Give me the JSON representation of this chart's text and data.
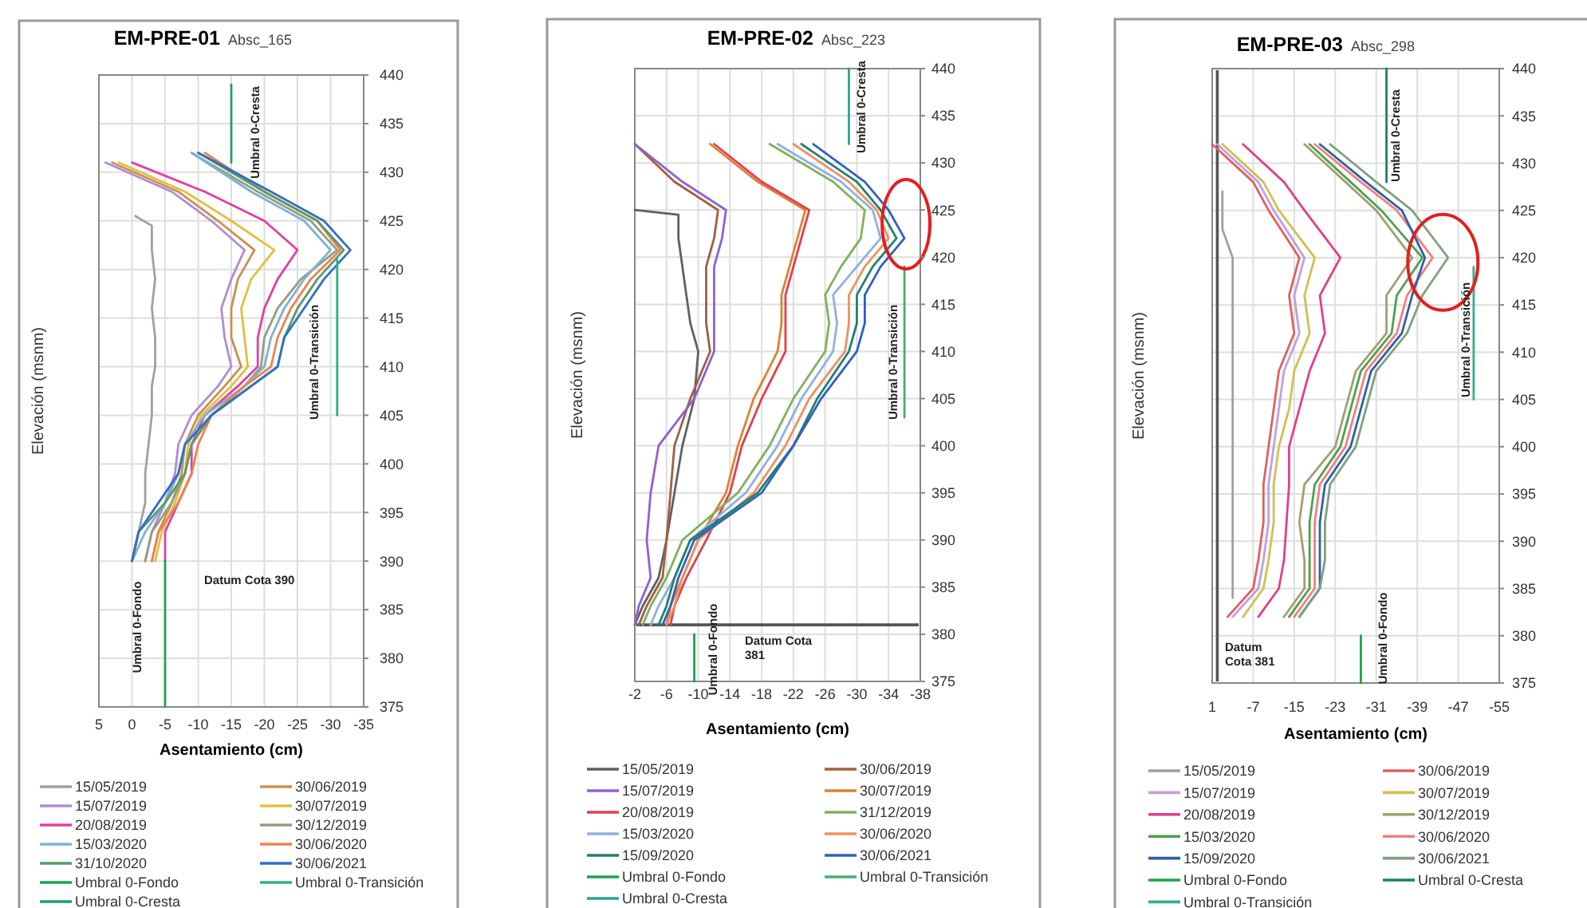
{
  "chart_data": [
    {
      "type": "line",
      "title": "EM-PRE-01",
      "subtitle": "Absc_165",
      "xlabel": "Asentamiento (cm)",
      "ylabel": "Elevación (msnm)",
      "xlim": [
        5,
        -35
      ],
      "xticks": [
        5,
        0,
        -5,
        -10,
        -15,
        -20,
        -25,
        -30,
        -35
      ],
      "ylim": [
        375,
        440
      ],
      "yticks": [
        375,
        380,
        385,
        390,
        395,
        400,
        405,
        410,
        415,
        420,
        425,
        430,
        435,
        440
      ],
      "grid": true,
      "legend": "bottom",
      "annotations": [
        "Umbral 0-Cresta",
        "Umbral 0-Transición",
        "Umbral 0-Fondo",
        "Datum Cota 390"
      ],
      "series": [
        {
          "name": "15/05/2019",
          "color": "#a0a0a0",
          "x": [
            -0.5,
            -3,
            -3,
            -3.5,
            -3,
            -3.5,
            -3.5,
            -3,
            -3,
            -2.5,
            -2,
            -2,
            -1,
            0
          ],
          "values": [
            425.5,
            424.5,
            422,
            419,
            416,
            413,
            410,
            408,
            405,
            402,
            399,
            396,
            393,
            390
          ]
        },
        {
          "name": "30/06/2019",
          "color": "#c89050",
          "x": [
            3,
            -7,
            -13,
            -18.5,
            -16,
            -15,
            -15,
            -16.5,
            -14,
            -10,
            -8,
            -7.5,
            -6,
            -4,
            -3
          ],
          "values": [
            431,
            428,
            425,
            422,
            419,
            416,
            413,
            410,
            408,
            405,
            402,
            399,
            396,
            393,
            390
          ]
        },
        {
          "name": "15/07/2019",
          "color": "#b08cd0",
          "x": [
            4,
            -6,
            -12,
            -17,
            -15,
            -13.5,
            -14,
            -15,
            -13,
            -9,
            -7,
            -6.5,
            -5,
            -3,
            -2
          ],
          "values": [
            431,
            428,
            425,
            422,
            419,
            416,
            413,
            410,
            408,
            405,
            402,
            399,
            396,
            393,
            390
          ]
        },
        {
          "name": "30/07/2019",
          "color": "#e0c040",
          "x": [
            2,
            -8,
            -15,
            -21.5,
            -18,
            -16.5,
            -17,
            -17.5,
            -15,
            -10.5,
            -8.5,
            -8,
            -6.5,
            -4.5,
            -3.5
          ],
          "values": [
            431,
            428,
            425,
            422,
            419,
            416,
            413,
            410,
            408,
            405,
            402,
            399,
            396,
            393,
            390
          ]
        },
        {
          "name": "20/08/2019",
          "color": "#e040a0",
          "x": [
            0,
            -11,
            -20,
            -25,
            -22,
            -20,
            -19,
            -19,
            -16,
            -11,
            -9,
            -9,
            -7,
            -5,
            -5
          ],
          "values": [
            431,
            428,
            425,
            422,
            419,
            416,
            413,
            410,
            408,
            405,
            402,
            399,
            396,
            393,
            390
          ]
        },
        {
          "name": "30/12/2019",
          "color": "#90a080",
          "x": [
            -9,
            -19,
            -27,
            -31,
            -25.5,
            -22,
            -20,
            -19.5,
            -17,
            -12,
            -9,
            -8,
            -6,
            -3,
            -2
          ],
          "values": [
            432,
            428,
            425,
            422,
            419,
            416,
            413,
            410,
            408,
            405,
            402,
            399,
            396,
            393,
            390
          ]
        },
        {
          "name": "15/03/2020",
          "color": "#7fb0d0",
          "x": [
            -9,
            -18,
            -26,
            -30,
            -26,
            -23,
            -21,
            -20,
            -17,
            -11,
            -8,
            -7,
            -5,
            -2,
            0
          ],
          "values": [
            432,
            428,
            425,
            422,
            419,
            416,
            413,
            410,
            408,
            405,
            402,
            399,
            396,
            393,
            390
          ]
        },
        {
          "name": "30/06/2020",
          "color": "#f08050",
          "x": [
            -11,
            -20,
            -28,
            -31.5,
            -27,
            -24,
            -22,
            -21,
            -17,
            -12,
            -10,
            -9,
            -7,
            -4,
            -3
          ],
          "values": [
            432,
            428,
            425,
            422,
            419,
            416,
            413,
            410,
            408,
            405,
            402,
            399,
            396,
            393,
            390
          ]
        },
        {
          "name": "31/10/2020",
          "color": "#5a9a6a",
          "x": [
            -10,
            -20,
            -28,
            -32,
            -28,
            -25,
            -23,
            -22,
            -18,
            -12,
            -9,
            -8,
            -5,
            -1,
            0
          ],
          "values": [
            432,
            428,
            425,
            422,
            419,
            416,
            413,
            410,
            408,
            405,
            402,
            399,
            396,
            393,
            390
          ]
        },
        {
          "name": "30/06/2021",
          "color": "#3070c0",
          "x": [
            -10,
            -21,
            -29,
            -33,
            -29,
            -26,
            -23,
            -22,
            -18,
            -12,
            -8,
            -7,
            -4,
            -1,
            0
          ],
          "values": [
            432,
            428,
            425,
            422,
            419,
            416,
            413,
            410,
            408,
            405,
            402,
            399,
            396,
            393,
            390
          ]
        },
        {
          "name": "Umbral 0-Fondo",
          "color": "#20a050",
          "x": [
            -5,
            -5
          ],
          "values": [
            390,
            375
          ]
        },
        {
          "name": "Umbral 0-Transición",
          "color": "#30b080",
          "x": [
            -31,
            -31
          ],
          "values": [
            421,
            405
          ]
        },
        {
          "name": "Umbral 0-Cresta",
          "color": "#20a060",
          "x": [
            -15,
            -15
          ],
          "values": [
            439,
            431
          ]
        }
      ]
    },
    {
      "type": "line",
      "title": "EM-PRE-02",
      "subtitle": "Absc_223",
      "xlabel": "Asentamiento (cm)",
      "ylabel": "Elevación (msnm)",
      "xlim": [
        -2,
        -38
      ],
      "xticks": [
        -2,
        -6,
        -10,
        -14,
        -18,
        -22,
        -26,
        -30,
        -34,
        -38
      ],
      "ylim": [
        375,
        440
      ],
      "yticks": [
        375,
        380,
        385,
        390,
        395,
        400,
        405,
        410,
        415,
        420,
        425,
        430,
        435,
        440
      ],
      "grid": true,
      "legend": "bottom",
      "ref_lines": [
        {
          "axis": "y",
          "value": 381,
          "color": "#555555"
        }
      ],
      "annotations": [
        "Umbral 0-Cresta",
        "Umbral 0-Transición",
        "Umbral 0-Fondo",
        "Datum Cota\n381"
      ],
      "series": [
        {
          "name": "15/05/2019",
          "color": "#606060",
          "x": [
            -2,
            -7.5,
            -7.5,
            -8,
            -8.5,
            -9,
            -10,
            -9.5,
            -8,
            -7,
            -6,
            -5,
            -3,
            -2
          ],
          "values": [
            425,
            424.5,
            422,
            419,
            416,
            413,
            410,
            405,
            400,
            395,
            390,
            386,
            383,
            381
          ]
        },
        {
          "name": "30/06/2019",
          "color": "#a06040",
          "x": [
            -2,
            -7,
            -12.5,
            -12,
            -11,
            -11,
            -11,
            -11.5,
            -9,
            -7,
            -6.5,
            -6,
            -5.5,
            -3.5,
            -2.5
          ],
          "values": [
            432,
            428,
            425,
            422,
            419,
            416,
            413,
            410,
            405,
            400,
            395,
            390,
            386,
            383,
            381
          ]
        },
        {
          "name": "15/07/2019",
          "color": "#9060d0",
          "x": [
            -2,
            -8,
            -13.5,
            -13,
            -12,
            -12,
            -12,
            -12,
            -9.5,
            -5,
            -4,
            -3.5,
            -4,
            -2.5,
            -2
          ],
          "values": [
            432,
            428,
            425,
            422,
            419,
            416,
            413,
            410,
            405,
            400,
            395,
            390,
            386,
            383,
            381
          ]
        },
        {
          "name": "30/07/2019",
          "color": "#e08030",
          "x": [
            -11.5,
            -17.5,
            -23.5,
            -22.5,
            -21.5,
            -20.5,
            -20.5,
            -20,
            -17,
            -15,
            -13.5,
            -10,
            -8,
            -6.5,
            -6
          ],
          "values": [
            432,
            428,
            425,
            422,
            419,
            416,
            413,
            410,
            405,
            400,
            395,
            390,
            386,
            383,
            381
          ]
        },
        {
          "name": "20/08/2019",
          "color": "#e04050",
          "x": [
            -12,
            -18,
            -24,
            -23,
            -22,
            -21,
            -21,
            -21,
            -18,
            -15.5,
            -14,
            -11,
            -8.5,
            -7,
            -6.5
          ],
          "values": [
            432,
            428,
            425,
            422,
            419,
            416,
            413,
            410,
            405,
            400,
            395,
            390,
            386,
            383,
            381
          ]
        },
        {
          "name": "31/12/2019",
          "color": "#80b060",
          "x": [
            -19,
            -27,
            -31,
            -30.5,
            -28,
            -26,
            -26.5,
            -26,
            -22,
            -19,
            -15,
            -8,
            -6,
            -4,
            -3
          ],
          "values": [
            432,
            428,
            425,
            422,
            419,
            416,
            413,
            410,
            405,
            400,
            395,
            390,
            386,
            383,
            381
          ]
        },
        {
          "name": "15/03/2020",
          "color": "#90b0e0",
          "x": [
            -20,
            -28,
            -32,
            -33,
            -30,
            -27,
            -27.5,
            -27,
            -23,
            -20,
            -16,
            -9,
            -7,
            -5,
            -4
          ],
          "values": [
            432,
            428,
            425,
            422,
            419,
            416,
            413,
            410,
            405,
            400,
            395,
            390,
            386,
            383,
            381
          ]
        },
        {
          "name": "30/06/2020",
          "color": "#f09060",
          "x": [
            -22,
            -29,
            -32.5,
            -34,
            -31,
            -29,
            -29,
            -28.5,
            -24,
            -21,
            -17,
            -10,
            -8,
            -7,
            -6
          ],
          "values": [
            432,
            428,
            425,
            422,
            419,
            416,
            413,
            410,
            405,
            400,
            395,
            390,
            386,
            383,
            381
          ]
        },
        {
          "name": "15/09/2020",
          "color": "#208070",
          "x": [
            -23,
            -30,
            -33,
            -35,
            -32,
            -30,
            -30,
            -29,
            -25,
            -22,
            -17.5,
            -9,
            -7,
            -6,
            -5
          ],
          "values": [
            432,
            428,
            425,
            422,
            419,
            416,
            413,
            410,
            405,
            400,
            395,
            390,
            386,
            383,
            381
          ]
        },
        {
          "name": "30/06/2021",
          "color": "#3060c0",
          "x": [
            -24.5,
            -31,
            -34,
            -36,
            -33,
            -31,
            -31,
            -30,
            -25.5,
            -22,
            -18,
            -9.5,
            -7.5,
            -6.5,
            -5.5
          ],
          "values": [
            432,
            428,
            425,
            422,
            419,
            416,
            413,
            410,
            405,
            400,
            395,
            390,
            386,
            383,
            381
          ]
        },
        {
          "name": "Umbral 0-Fondo",
          "color": "#20a050",
          "x": [
            -9.5,
            -9.5
          ],
          "values": [
            380,
            375
          ]
        },
        {
          "name": "Umbral 0-Transición",
          "color": "#40b070",
          "x": [
            -36,
            -36
          ],
          "values": [
            419,
            403
          ]
        },
        {
          "name": "Umbral 0-Cresta",
          "color": "#30a090",
          "x": [
            -29,
            -29
          ],
          "values": [
            440,
            432
          ]
        }
      ]
    },
    {
      "type": "line",
      "title": "EM-PRE-03",
      "subtitle": "Absc_298",
      "xlabel": "Asentamiento (cm)",
      "ylabel": "Elevación (msnm)",
      "xlim": [
        1,
        -55
      ],
      "xticks": [
        1,
        -7,
        -15,
        -23,
        -31,
        -39,
        -47,
        -55
      ],
      "ylim": [
        375,
        440
      ],
      "yticks": [
        375,
        380,
        385,
        390,
        395,
        400,
        405,
        410,
        415,
        420,
        425,
        430,
        435,
        440
      ],
      "grid": true,
      "legend": "bottom",
      "ref_lines": [
        {
          "axis": "x",
          "value": 0,
          "color": "#555555"
        }
      ],
      "annotations": [
        "Umbral 0-Cresta",
        "Umbral 0-Transición",
        "Umbral 0-Fondo",
        "Datum\nCota 381"
      ],
      "series": [
        {
          "name": "15/05/2019",
          "color": "#a0a0a0",
          "x": [
            -1,
            -1,
            -3,
            -3,
            -3,
            -3,
            -3,
            -3,
            -3,
            -3,
            -3,
            -3
          ],
          "values": [
            427,
            423,
            420,
            416,
            412,
            408,
            404,
            400,
            396,
            392,
            388,
            384
          ]
        },
        {
          "name": "30/06/2019",
          "color": "#e06060",
          "x": [
            1,
            -7,
            -10,
            -16,
            -14,
            -15,
            -12,
            -11,
            -10,
            -9,
            -9,
            -8,
            -7,
            -2
          ],
          "values": [
            432,
            428,
            425,
            420,
            416,
            412,
            408,
            404,
            400,
            396,
            392,
            388,
            385,
            382
          ]
        },
        {
          "name": "15/07/2019",
          "color": "#c0a0e0",
          "x": [
            0,
            -8,
            -11,
            -17,
            -15,
            -16,
            -13,
            -12,
            -11,
            -10,
            -10,
            -9,
            -8,
            -3
          ],
          "values": [
            432,
            428,
            425,
            420,
            416,
            412,
            408,
            404,
            400,
            396,
            392,
            388,
            385,
            382
          ]
        },
        {
          "name": "30/07/2019",
          "color": "#d0c050",
          "x": [
            -1,
            -9,
            -12,
            -19,
            -17,
            -18,
            -15,
            -14,
            -12,
            -11,
            -11,
            -10,
            -9,
            -5
          ],
          "values": [
            432,
            428,
            425,
            420,
            416,
            412,
            408,
            404,
            400,
            396,
            392,
            388,
            385,
            382
          ]
        },
        {
          "name": "20/08/2019",
          "color": "#e0408a",
          "x": [
            -5,
            -13,
            -17,
            -24,
            -20,
            -21,
            -18,
            -16,
            -14,
            -14,
            -13.5,
            -13,
            -12,
            -8
          ],
          "values": [
            432,
            428,
            425,
            420,
            416,
            412,
            408,
            404,
            400,
            396,
            392,
            388,
            385,
            382
          ]
        },
        {
          "name": "30/12/2019",
          "color": "#a0a070",
          "x": [
            -17,
            -25,
            -31,
            -38,
            -33,
            -33,
            -27,
            -25,
            -23,
            -17,
            -16,
            -17,
            -17,
            -13
          ],
          "values": [
            432,
            428,
            425,
            420,
            416,
            412,
            408,
            404,
            400,
            396,
            392,
            388,
            385,
            382
          ]
        },
        {
          "name": "15/03/2020",
          "color": "#50a050",
          "x": [
            -18,
            -26,
            -32,
            -40,
            -35,
            -34,
            -28,
            -26,
            -24,
            -19,
            -18,
            -18,
            -18,
            -14
          ],
          "values": [
            432,
            428,
            425,
            420,
            416,
            412,
            408,
            404,
            400,
            396,
            392,
            388,
            385,
            382
          ]
        },
        {
          "name": "30/06/2020",
          "color": "#f08080",
          "x": [
            -19,
            -28,
            -35,
            -42,
            -37,
            -35,
            -29,
            -27,
            -25,
            -20,
            -19,
            -19,
            -19,
            -15
          ],
          "values": [
            432,
            428,
            425,
            420,
            416,
            412,
            408,
            404,
            400,
            396,
            392,
            388,
            385,
            382
          ]
        },
        {
          "name": "15/09/2020",
          "color": "#3060a0",
          "x": [
            -20,
            -29,
            -36,
            -40.5,
            -38,
            -36,
            -30,
            -28,
            -26,
            -21,
            -20,
            -20,
            -20,
            -16
          ],
          "values": [
            432,
            428,
            425,
            420,
            416,
            412,
            408,
            404,
            400,
            396,
            392,
            388,
            385,
            382
          ]
        },
        {
          "name": "30/06/2021",
          "color": "#80a080",
          "x": [
            -22,
            -31,
            -38,
            -45,
            -40,
            -37,
            -31,
            -29,
            -27,
            -22,
            -21,
            -21,
            -20,
            -16
          ],
          "values": [
            432,
            428,
            425,
            420,
            416,
            412,
            408,
            404,
            400,
            396,
            392,
            388,
            385,
            382
          ]
        },
        {
          "name": "Umbral 0-Fondo",
          "color": "#20a050",
          "x": [
            -28,
            -28
          ],
          "values": [
            380,
            375
          ]
        },
        {
          "name": "Umbral 0-Cresta",
          "color": "#208060",
          "x": [
            -33,
            -33
          ],
          "values": [
            440,
            428
          ]
        },
        {
          "name": "Umbral 0-Transición",
          "color": "#30b090",
          "x": [
            -50,
            -50
          ],
          "values": [
            419,
            405
          ]
        }
      ]
    }
  ]
}
